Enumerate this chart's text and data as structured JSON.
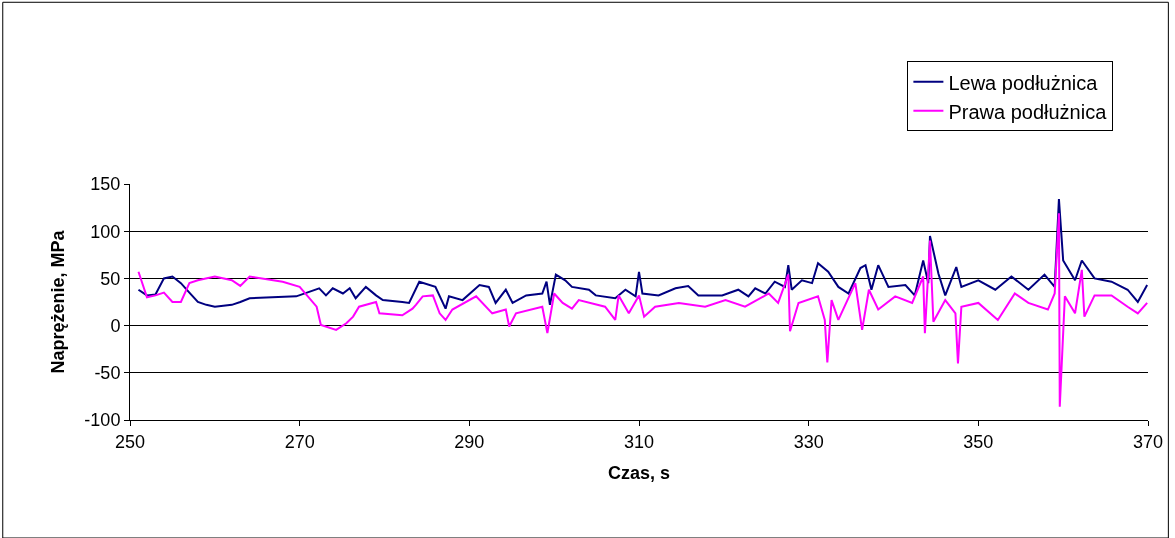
{
  "chart_data": {
    "type": "line",
    "xlabel": "Czas, s",
    "ylabel": "Naprężenie, MPa",
    "xlim": [
      250,
      370
    ],
    "xticks": [
      250,
      270,
      290,
      310,
      330,
      350,
      370
    ],
    "ylim": [
      -100,
      150
    ],
    "yticks": [
      -100,
      -50,
      0,
      50,
      100,
      150
    ],
    "grid": "y",
    "legend": "top right",
    "marker": "none",
    "line_style": "solid",
    "series": [
      {
        "name": "Lewa podłużnica",
        "color": "#000080",
        "x": [
          251,
          252,
          253,
          254,
          255,
          256,
          257,
          258,
          259,
          260,
          262,
          263,
          264.1,
          269.6,
          271.2,
          272.3,
          273.1,
          273.9,
          275.1,
          275.9,
          276.6,
          277.8,
          279,
          279.8,
          282.1,
          282.9,
          284.1,
          286,
          287.2,
          287.6,
          289.2,
          291.2,
          292.3,
          293.1,
          294.3,
          295.1,
          296.7,
          298.6,
          299.1,
          299.5,
          300.2,
          301.3,
          302.1,
          304.1,
          304.9,
          307.2,
          308.4,
          309.6,
          310,
          310.4,
          312.3,
          314.3,
          315.8,
          317,
          319.8,
          321.7,
          322.9,
          323.7,
          324.9,
          326,
          327.2,
          327.6,
          328,
          329.2,
          330.4,
          331.1,
          332.3,
          333.5,
          334.7,
          336.1,
          336.7,
          337.4,
          338.2,
          339.4,
          341.4,
          342.5,
          343.5,
          344.1,
          344.3,
          345.3,
          346.1,
          347.4,
          348,
          350,
          352,
          353.9,
          355.9,
          357.8,
          359,
          359.5,
          360,
          361.4,
          362.2,
          363.7,
          365.7,
          367.6,
          368.8,
          369.9
        ],
        "values": [
          38,
          32,
          33,
          50,
          52,
          45,
          35,
          25,
          22,
          20,
          22,
          25,
          29,
          31,
          36,
          39.5,
          32,
          39.5,
          34,
          39.5,
          29,
          41,
          32,
          27,
          25,
          24,
          46.5,
          41,
          18,
          31,
          27,
          43,
          41,
          24,
          38,
          24,
          32,
          34,
          46.5,
          22,
          54,
          48,
          41,
          38,
          32,
          29,
          38,
          31,
          57,
          34,
          32,
          39.5,
          42,
          32,
          32,
          38,
          31,
          39.5,
          34,
          46.5,
          41,
          64,
          38,
          48,
          45,
          66,
          57,
          41,
          34,
          61,
          64,
          38,
          64,
          41,
          43,
          32,
          69,
          45,
          95,
          55,
          32,
          62,
          41,
          48,
          38,
          52,
          38,
          54,
          41,
          134,
          69,
          48,
          69,
          50,
          46.5,
          38,
          25,
          43
        ]
      },
      {
        "name": "Prawa podłużnica",
        "color": "#ff00ff",
        "x": [
          251,
          252,
          253,
          254,
          255,
          256,
          257,
          258,
          260,
          262,
          263,
          264.1,
          268,
          270,
          272,
          272.5,
          274.3,
          275.5,
          276.3,
          277,
          279,
          279.4,
          282.1,
          283.3,
          283.7,
          284.5,
          285.7,
          286.5,
          287.2,
          288,
          290.8,
          292.7,
          294.3,
          294.7,
          295.5,
          298.6,
          299.2,
          300,
          301,
          302.1,
          302.9,
          306,
          307.2,
          307.6,
          308.8,
          310,
          310.6,
          311.9,
          314.7,
          317.8,
          320.2,
          322.5,
          325.3,
          326.4,
          327.6,
          327.8,
          328.8,
          331.1,
          331.9,
          332.2,
          332.7,
          333.5,
          335.5,
          336.3,
          337.1,
          338.2,
          340.2,
          342.2,
          343.5,
          343.7,
          344.3,
          344.7,
          346.1,
          347.3,
          347.6,
          348,
          350,
          352.3,
          354.3,
          355.9,
          358.2,
          359,
          359.5,
          359.6,
          360.2,
          361.4,
          362.2,
          362.5,
          363.7,
          365.7,
          367.6,
          368.8,
          369.9
        ],
        "values": [
          57,
          30,
          32,
          35,
          25,
          25,
          45,
          48,
          52,
          48,
          42,
          52,
          46.5,
          41,
          20,
          0.7,
          -4.6,
          2.5,
          9.5,
          20,
          25,
          13,
          11,
          18,
          22,
          31,
          32,
          13,
          6,
          17,
          31,
          13,
          17,
          -1,
          13,
          20,
          -8,
          34,
          24,
          18,
          27,
          20,
          6,
          32,
          13,
          32,
          9.5,
          20,
          24,
          20,
          27,
          20,
          34,
          24,
          54,
          -6,
          24,
          31,
          6,
          -39,
          27,
          6,
          45,
          -4.6,
          38,
          17,
          31,
          24,
          52,
          -8,
          90,
          4,
          27,
          13,
          -40,
          20,
          24,
          6,
          34,
          24,
          17,
          34,
          119,
          -86,
          31,
          13,
          59,
          9.5,
          32,
          32,
          20,
          13,
          24
        ]
      }
    ]
  }
}
